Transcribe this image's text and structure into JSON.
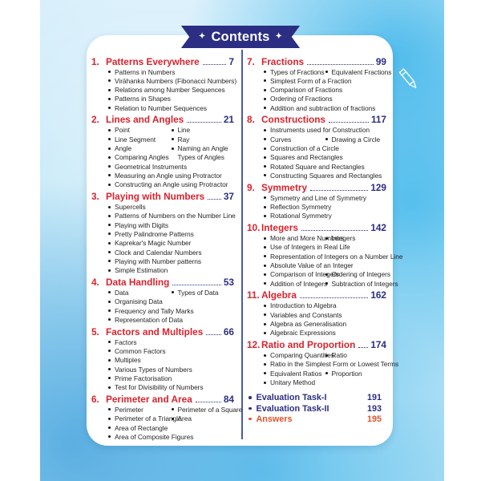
{
  "banner": {
    "title": "Contents",
    "star": "✦"
  },
  "colors": {
    "chapter_red": "#d9232e",
    "navy": "#2b2e83",
    "answers_orange": "#e0512d",
    "background_blue": "#bfe6f7",
    "banner_navy": "#2b2e83"
  },
  "columns": [
    {
      "chapters": [
        {
          "num": "1.",
          "title": "Patterns Everywhere",
          "page": "7",
          "topics": [
            [
              {
                "t": "Patterns in Numbers"
              }
            ],
            [
              {
                "t": "Virāhanka Numbers (Fibonacci Numbers)"
              }
            ],
            [
              {
                "t": "Relations among Number Sequences"
              }
            ],
            [
              {
                "t": "Patterns in Shapes"
              }
            ],
            [
              {
                "t": "Relation to Number Sequences"
              }
            ]
          ]
        },
        {
          "num": "2.",
          "title": "Lines and Angles",
          "page": "21",
          "topics": [
            [
              {
                "t": "Point"
              },
              {
                "t": "Line"
              }
            ],
            [
              {
                "t": "Line Segment"
              },
              {
                "t": "Ray"
              }
            ],
            [
              {
                "t": "Angle"
              },
              {
                "t": "Naming an Angle"
              }
            ],
            [
              {
                "t": "Comparing Angles"
              },
              {
                "t": "Types of Angles",
                "b": false
              }
            ],
            [
              {
                "t": "Geometrical Instruments"
              }
            ],
            [
              {
                "t": "Measuring an Angle using Protractor"
              }
            ],
            [
              {
                "t": "Constructing an Angle using Protractor"
              }
            ]
          ]
        },
        {
          "num": "3.",
          "title": "Playing with Numbers",
          "page": "37",
          "topics": [
            [
              {
                "t": "Supercells"
              }
            ],
            [
              {
                "t": "Patterns of Numbers on the Number Line"
              }
            ],
            [
              {
                "t": "Playing with Digits"
              }
            ],
            [
              {
                "t": "Pretty Palindrome Patterns"
              }
            ],
            [
              {
                "t": "Kaprekar's Magic Number"
              }
            ],
            [
              {
                "t": "Clock and Calendar Numbers"
              }
            ],
            [
              {
                "t": "Playing with Number patterns"
              }
            ],
            [
              {
                "t": "Simple Estimation"
              }
            ]
          ]
        },
        {
          "num": "4.",
          "title": "Data Handling",
          "page": "53",
          "topics": [
            [
              {
                "t": "Data"
              },
              {
                "t": "Types of Data"
              }
            ],
            [
              {
                "t": "Organising Data"
              }
            ],
            [
              {
                "t": "Frequency and Tally Marks"
              }
            ],
            [
              {
                "t": "Representation of Data"
              }
            ]
          ]
        },
        {
          "num": "5.",
          "title": "Factors and Multiples",
          "page": "66",
          "topics": [
            [
              {
                "t": "Factors"
              }
            ],
            [
              {
                "t": "Common Factors"
              }
            ],
            [
              {
                "t": "Multiples"
              }
            ],
            [
              {
                "t": "Various Types of Numbers"
              }
            ],
            [
              {
                "t": "Prime Factorisation"
              }
            ],
            [
              {
                "t": "Test for Divisibility of Numbers"
              }
            ]
          ]
        },
        {
          "num": "6.",
          "title": "Perimeter and Area",
          "page": "84",
          "topics": [
            [
              {
                "t": "Perimeter"
              },
              {
                "t": "Perimeter of a Square"
              }
            ],
            [
              {
                "t": "Perimeter of a Triangle"
              },
              {
                "t": "Area"
              }
            ],
            [
              {
                "t": "Area of Rectangle"
              }
            ],
            [
              {
                "t": "Area of Composite Figures"
              }
            ]
          ]
        }
      ]
    },
    {
      "chapters": [
        {
          "num": "7.",
          "title": "Fractions",
          "page": "99",
          "topics": [
            [
              {
                "t": "Types of Fractions"
              },
              {
                "t": "Equivalent Fractions"
              }
            ],
            [
              {
                "t": "Simplest Form of a Fraction"
              }
            ],
            [
              {
                "t": "Comparison of Fractions"
              }
            ],
            [
              {
                "t": "Ordering of Fractions"
              }
            ],
            [
              {
                "t": "Addition and subtraction of fractions"
              }
            ]
          ]
        },
        {
          "num": "8.",
          "title": "Constructions",
          "page": "117",
          "topics": [
            [
              {
                "t": "Instruments used for Construction"
              }
            ],
            [
              {
                "t": "Curves"
              },
              {
                "t": "Drawing a Circle"
              }
            ],
            [
              {
                "t": "Construction of a Circle"
              }
            ],
            [
              {
                "t": "Squares and Rectangles"
              }
            ],
            [
              {
                "t": "Rotated Square and Rectangles"
              }
            ],
            [
              {
                "t": "Constructing Squares and Rectangles"
              }
            ]
          ]
        },
        {
          "num": "9.",
          "title": "Symmetry",
          "page": "129",
          "topics": [
            [
              {
                "t": "Symmetry and Line of Symmetry"
              }
            ],
            [
              {
                "t": "Reflection Symmetry"
              }
            ],
            [
              {
                "t": "Rotational Symmetry"
              }
            ]
          ]
        },
        {
          "num": "10.",
          "title": "Integers",
          "page": "142",
          "topics": [
            [
              {
                "t": "More and More Numbers"
              },
              {
                "t": "Integers"
              }
            ],
            [
              {
                "t": "Use of Integers in Real Life"
              }
            ],
            [
              {
                "t": "Representation of Integers on a Number Line"
              }
            ],
            [
              {
                "t": "Absolute Value of an Integer"
              }
            ],
            [
              {
                "t": "Comparison of Integers"
              },
              {
                "t": "Ordering of Integers"
              }
            ],
            [
              {
                "t": "Addition of Integers"
              },
              {
                "t": "Subtraction of Integers"
              }
            ]
          ]
        },
        {
          "num": "11.",
          "title": "Algebra",
          "page": "162",
          "topics": [
            [
              {
                "t": "Introduction to Algebra"
              }
            ],
            [
              {
                "t": "Variables and Constants"
              }
            ],
            [
              {
                "t": "Algebra as Generalisation"
              }
            ],
            [
              {
                "t": "Algebraic Expressions"
              }
            ]
          ]
        },
        {
          "num": "12.",
          "title": "Ratio and Proportion",
          "page": "174",
          "topics": [
            [
              {
                "t": "Comparing Quantities"
              },
              {
                "t": "Ratio"
              }
            ],
            [
              {
                "t": "Ratio in the Simplest Form or Lowest Terms"
              }
            ],
            [
              {
                "t": "Equivalent Ratios"
              },
              {
                "t": "Proportion"
              }
            ],
            [
              {
                "t": "Unitary Method"
              }
            ]
          ]
        }
      ],
      "extras": [
        {
          "label": "Evaluation Task-I",
          "page": "191",
          "style": "navy"
        },
        {
          "label": "Evaluation Task-II",
          "page": "193",
          "style": "navy"
        },
        {
          "label": "Answers",
          "page": "195",
          "style": "orange"
        }
      ]
    }
  ]
}
